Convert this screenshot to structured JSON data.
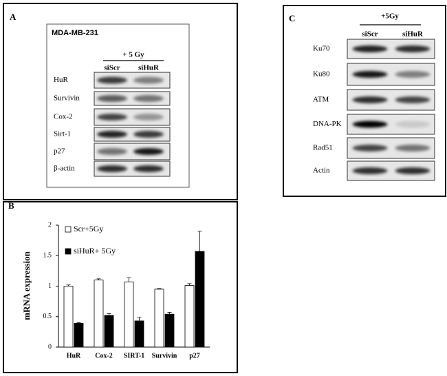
{
  "panel_a": {
    "label": "A",
    "cell_line": "MDA-MB-231",
    "treatment": "+ 5 Gy",
    "columns": [
      "siScr",
      "siHuR"
    ],
    "rows": [
      "HuR",
      "Survivin",
      "Cox-2",
      "Sirt-1",
      "p27",
      "β-actin"
    ]
  },
  "panel_c": {
    "label": "C",
    "treatment": "+5Gy",
    "columns": [
      "siScr",
      "siHuR"
    ],
    "rows": [
      "Ku70",
      "Ku80",
      "ATM",
      "DNA-PK",
      "Rad51",
      "Actin"
    ]
  },
  "chart_data": {
    "type": "bar",
    "panel_label": "B",
    "y_label": "mRNA expression",
    "categories": [
      "HuR",
      "Cox-2",
      "SIRT-1",
      "Survivin",
      "p27"
    ],
    "series": [
      {
        "name": "Scr+5Gy",
        "color": "#ffffff",
        "values": [
          1.0,
          1.1,
          1.07,
          0.95,
          1.01
        ],
        "errors": [
          0.02,
          0.02,
          0.07,
          0.01,
          0.03
        ]
      },
      {
        "name": "siHuR+ 5Gy",
        "color": "#000000",
        "values": [
          0.39,
          0.52,
          0.43,
          0.54,
          1.57
        ],
        "errors": [
          0.01,
          0.03,
          0.06,
          0.03,
          0.33
        ]
      }
    ],
    "ylim": [
      0,
      2
    ],
    "yticks": [
      0,
      0.5,
      1,
      1.5,
      2
    ]
  }
}
